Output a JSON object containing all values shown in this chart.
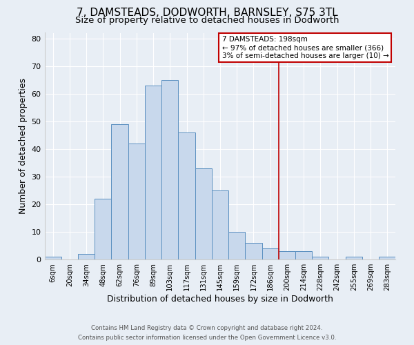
{
  "title": "7, DAMSTEADS, DODWORTH, BARNSLEY, S75 3TL",
  "subtitle": "Size of property relative to detached houses in Dodworth",
  "xlabel": "Distribution of detached houses by size in Dodworth",
  "ylabel": "Number of detached properties",
  "bin_labels": [
    "6sqm",
    "20sqm",
    "34sqm",
    "48sqm",
    "62sqm",
    "76sqm",
    "89sqm",
    "103sqm",
    "117sqm",
    "131sqm",
    "145sqm",
    "159sqm",
    "172sqm",
    "186sqm",
    "200sqm",
    "214sqm",
    "228sqm",
    "242sqm",
    "255sqm",
    "269sqm",
    "283sqm"
  ],
  "counts": [
    1,
    0,
    2,
    22,
    49,
    42,
    63,
    65,
    46,
    33,
    25,
    10,
    6,
    4,
    3,
    3,
    1,
    0,
    1,
    0,
    1
  ],
  "bar_facecolor": "#c8d8ec",
  "bar_edgecolor": "#5a8fc0",
  "vline_x": 14,
  "vline_color": "#c00000",
  "annotation_line1": "7 DAMSTEADS: 198sqm",
  "annotation_line2": "← 97% of detached houses are smaller (366)",
  "annotation_line3": "3% of semi-detached houses are larger (10) →",
  "annotation_box_edgecolor": "#c00000",
  "ylim": [
    0,
    82
  ],
  "yticks": [
    0,
    10,
    20,
    30,
    40,
    50,
    60,
    70,
    80
  ],
  "background_color": "#e8eef5",
  "plot_background": "#e8eef5",
  "footer_line1": "Contains HM Land Registry data © Crown copyright and database right 2024.",
  "footer_line2": "Contains public sector information licensed under the Open Government Licence v3.0.",
  "title_fontsize": 11,
  "subtitle_fontsize": 9.5,
  "xlabel_fontsize": 9,
  "ylabel_fontsize": 9
}
